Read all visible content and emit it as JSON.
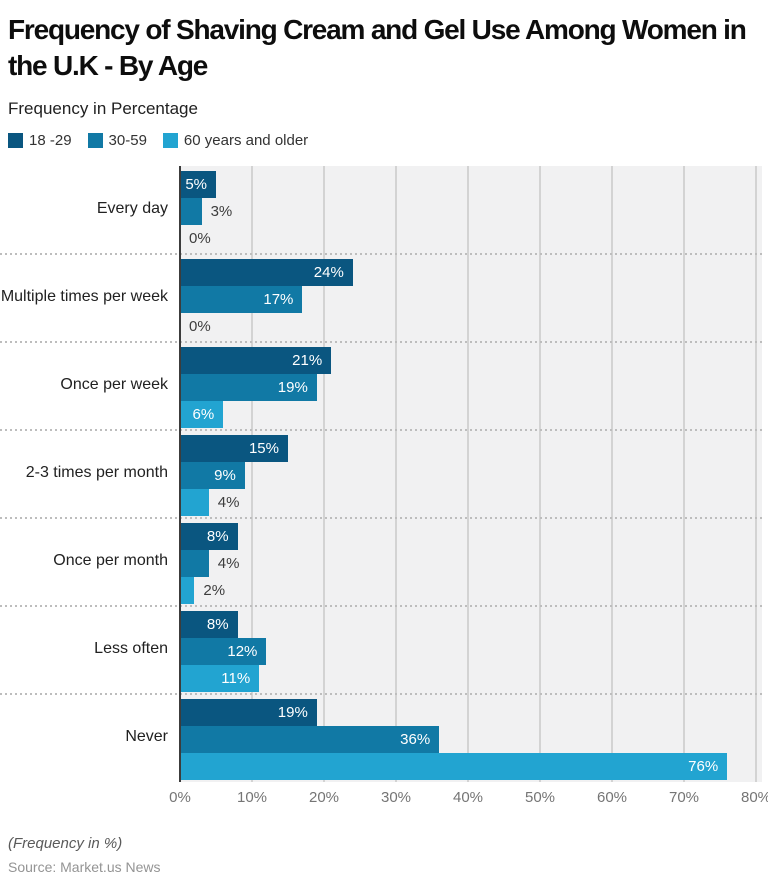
{
  "chart_data": {
    "type": "bar",
    "orientation": "horizontal",
    "title": "Frequency of Shaving Cream and Gel Use Among Women in the U.K - By Age",
    "subtitle": "Frequency in Percentage",
    "categories": [
      "Every day",
      "Multiple times per week",
      "Once per week",
      "2-3 times per month",
      "Once per month",
      "Less often",
      "Never"
    ],
    "series": [
      {
        "name": "18 -29",
        "color": "#0a5680",
        "values": [
          5,
          24,
          21,
          15,
          8,
          8,
          19
        ]
      },
      {
        "name": "30-59",
        "color": "#1179a5",
        "values": [
          3,
          17,
          19,
          9,
          4,
          12,
          36
        ]
      },
      {
        "name": "60 years and older",
        "color": "#22a4d1",
        "values": [
          0,
          0,
          6,
          4,
          2,
          11,
          76
        ]
      }
    ],
    "value_labels": [
      [
        "5%",
        "3%",
        "0%"
      ],
      [
        "24%",
        "17%",
        "0%"
      ],
      [
        "21%",
        "19%",
        "6%"
      ],
      [
        "15%",
        "9%",
        "4%"
      ],
      [
        "8%",
        "4%",
        "2%"
      ],
      [
        "8%",
        "12%",
        "11%"
      ],
      [
        "19%",
        "36%",
        "76%"
      ]
    ],
    "xlim": [
      0,
      80
    ],
    "x_ticks": [
      0,
      10,
      20,
      30,
      40,
      50,
      60,
      70,
      80
    ],
    "x_tick_labels": [
      "0%",
      "10%",
      "20%",
      "30%",
      "40%",
      "50%",
      "60%",
      "70%",
      "80%"
    ],
    "grid": "vertical",
    "legend_position": "top",
    "plot_background": "#f1f1f2",
    "gridline_color": "#d3d3d3",
    "footnote": "(Frequency in %)",
    "source": "Source: Market.us News"
  }
}
